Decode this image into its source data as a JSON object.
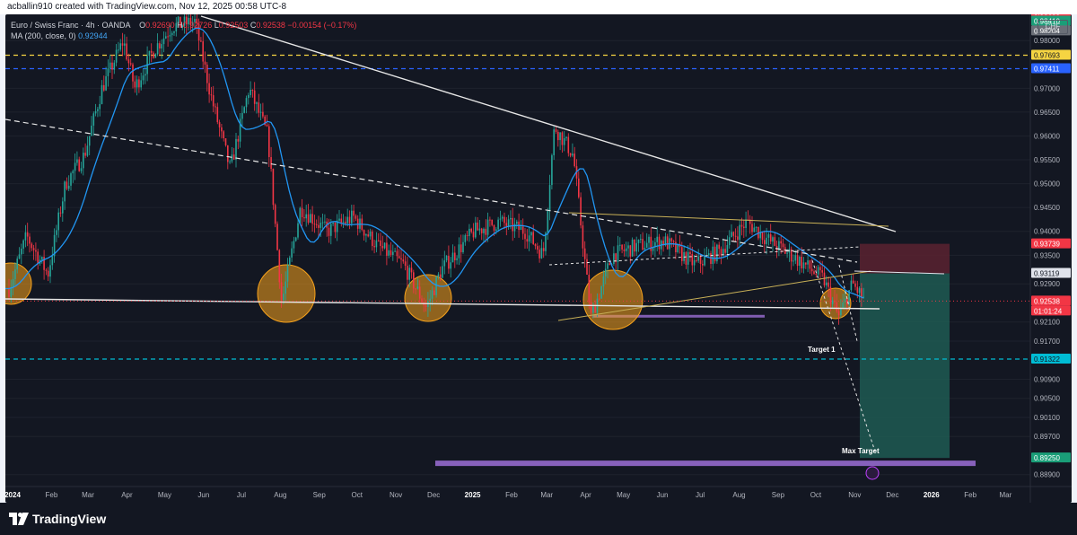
{
  "header": {
    "created_by": "acballin910 created with TradingView.com, Nov 12, 2025 00:58 UTC-8"
  },
  "legend": {
    "symbol": "Euro / Swiss Franc · 4h · OANDA",
    "open_label": "O",
    "open": "0.92690",
    "high_label": "H",
    "high": "0.92726",
    "low_label": "L",
    "low": "0.92503",
    "close_label": "C",
    "close": "0.92538",
    "change": "−0.00154 (−0.17%)",
    "ma_label": "MA (200, close, 0)",
    "ma_value": "0.92944"
  },
  "currency": "CHF",
  "branding": {
    "name": "TradingView"
  },
  "colors": {
    "background": "#131722",
    "up": "#26a69a",
    "down": "#f23645",
    "ma": "#2196f3",
    "trend": "#e0e0e0",
    "yellow": "#f5d442",
    "blue_dash": "#2962ff",
    "cyan_dash": "#00bcd4",
    "circle": "#f7a21b",
    "target_zone": "#1f5a52",
    "stop_zone": "#5a2230",
    "purple": "#9c6fd6"
  },
  "chart_data": {
    "type": "candlestick",
    "x_ticks": [
      "2024",
      "Feb",
      "Mar",
      "Apr",
      "May",
      "Jun",
      "Jul",
      "Aug",
      "Sep",
      "Oct",
      "Nov",
      "Dec",
      "2025",
      "Feb",
      "Mar",
      "Apr",
      "May",
      "Jun",
      "Jul",
      "Aug",
      "Sep",
      "Oct",
      "Nov",
      "Dec",
      "2026",
      "Feb",
      "Mar"
    ],
    "y_ticks": [
      "0.98000",
      "0.97000",
      "0.96500",
      "0.96000",
      "0.95500",
      "0.95000",
      "0.94500",
      "0.94000",
      "0.93500",
      "0.92900",
      "0.92100",
      "0.91700",
      "0.90900",
      "0.90500",
      "0.90100",
      "0.89700",
      "0.88900"
    ],
    "ylim": [
      0.8865,
      0.9855
    ],
    "close_path": [
      [
        "2024-01-01",
        0.928
      ],
      [
        "2024-01-15",
        0.939
      ],
      [
        "2024-02-01",
        0.931
      ],
      [
        "2024-02-15",
        0.95
      ],
      [
        "2024-03-01",
        0.956
      ],
      [
        "2024-03-15",
        0.97
      ],
      [
        "2024-04-01",
        0.98
      ],
      [
        "2024-04-10",
        0.97
      ],
      [
        "2024-04-25",
        0.978
      ],
      [
        "2024-05-10",
        0.983
      ],
      [
        "2024-05-28",
        0.984
      ],
      [
        "2024-06-10",
        0.968
      ],
      [
        "2024-06-25",
        0.953
      ],
      [
        "2024-07-10",
        0.97
      ],
      [
        "2024-07-25",
        0.96
      ],
      [
        "2024-08-05",
        0.925
      ],
      [
        "2024-08-20",
        0.945
      ],
      [
        "2024-09-10",
        0.94
      ],
      [
        "2024-10-01",
        0.943
      ],
      [
        "2024-10-20",
        0.937
      ],
      [
        "2024-11-10",
        0.933
      ],
      [
        "2024-11-28",
        0.924
      ],
      [
        "2024-12-10",
        0.932
      ],
      [
        "2025-01-05",
        0.94
      ],
      [
        "2025-01-25",
        0.942
      ],
      [
        "2025-02-15",
        0.94
      ],
      [
        "2025-03-01",
        0.935
      ],
      [
        "2025-03-10",
        0.962
      ],
      [
        "2025-03-25",
        0.956
      ],
      [
        "2025-04-08",
        0.922
      ],
      [
        "2025-04-25",
        0.935
      ],
      [
        "2025-05-15",
        0.937
      ],
      [
        "2025-06-05",
        0.938
      ],
      [
        "2025-06-30",
        0.933
      ],
      [
        "2025-07-20",
        0.936
      ],
      [
        "2025-08-10",
        0.942
      ],
      [
        "2025-08-28",
        0.938
      ],
      [
        "2025-09-20",
        0.934
      ],
      [
        "2025-10-10",
        0.93
      ],
      [
        "2025-10-22",
        0.922
      ],
      [
        "2025-11-02",
        0.929
      ],
      [
        "2025-11-12",
        0.9254
      ]
    ],
    "series": [
      {
        "name": "MA (200, close, 0)",
        "last": 0.92944
      }
    ],
    "price_labels": [
      {
        "value": "0.98600",
        "color": "#f23645",
        "text_color": "#ffffff"
      },
      {
        "value": "0.98410",
        "color": "#1a9e78",
        "text_color": "#ffffff"
      },
      {
        "value": "0.98204",
        "color": "#6b6f78",
        "text_color": "#ffffff"
      },
      {
        "value": "0.97693",
        "color": "#f5d442",
        "text_color": "#131722"
      },
      {
        "value": "0.97411",
        "color": "#2962ff",
        "text_color": "#ffffff"
      },
      {
        "value": "0.93739",
        "color": "#f23645",
        "text_color": "#ffffff"
      },
      {
        "value": "0.93119",
        "color": "#e0e3eb",
        "text_color": "#131722"
      },
      {
        "value": "0.92538",
        "color": "#f23645",
        "text_color": "#ffffff"
      },
      {
        "value": "01:01:24",
        "color": "#f23645",
        "text_color": "#ffffff"
      },
      {
        "value": "0.91322",
        "color": "#00bcd4",
        "text_color": "#131722"
      },
      {
        "value": "0.89250",
        "color": "#1a9e78",
        "text_color": "#ffffff"
      }
    ],
    "levels": [
      {
        "value": 0.97693,
        "style": "dashed",
        "color": "yellow"
      },
      {
        "value": 0.97411,
        "style": "dashed",
        "color": "blue"
      },
      {
        "value": 0.91322,
        "style": "dashed",
        "color": "cyan"
      }
    ],
    "annotations": {
      "target_1": "Target 1",
      "max_target": "Max Target"
    },
    "trade": {
      "entry": 0.93119,
      "stop": 0.93739,
      "target": 0.8925
    }
  }
}
